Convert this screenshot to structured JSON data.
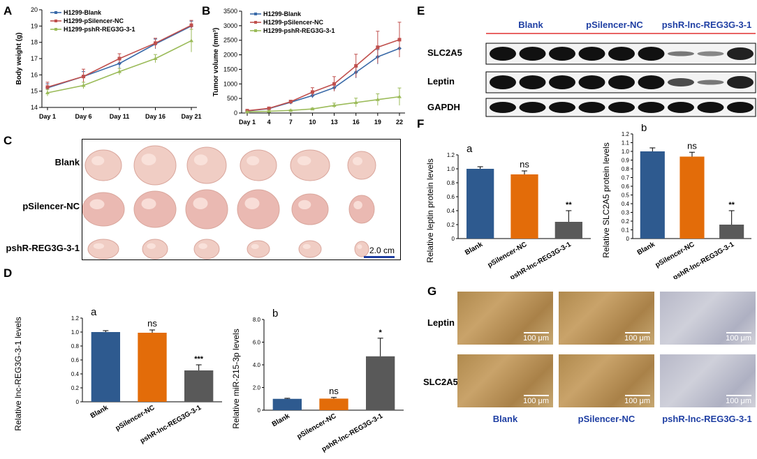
{
  "panels": {
    "A": "A",
    "B": "B",
    "C": "C",
    "D": "D",
    "E": "E",
    "F": "F",
    "G": "G",
    "Da": "a",
    "Db": "b",
    "Fa": "a",
    "Fb": "b"
  },
  "colors": {
    "blank": "#3a6aa8",
    "nc": "#c0504d",
    "shr": "#9bbb59",
    "bar_blank": "#2e5a8f",
    "bar_nc": "#e36c09",
    "bar_shr": "#595959",
    "label_blue": "#1f3fa3",
    "wb_red": "#e03030"
  },
  "chart_data": [
    {
      "id": "A",
      "type": "line",
      "title": "",
      "xlabel": "",
      "ylabel": "Body weight (g)",
      "categories": [
        "Day 1",
        "Day 6",
        "Day 11",
        "Day 16",
        "Day 21"
      ],
      "ylim": [
        14,
        20
      ],
      "yticks": [
        "14",
        "15",
        "16",
        "17",
        "18",
        "19",
        "20"
      ],
      "series": [
        {
          "name": "H1299-Blank",
          "values": [
            15.2,
            15.9,
            16.7,
            17.9,
            19.0
          ],
          "err": [
            0.25,
            0.3,
            0.3,
            0.3,
            0.3
          ]
        },
        {
          "name": "H1299-pSilencer-NC",
          "values": [
            15.25,
            15.9,
            17.0,
            17.95,
            19.05
          ],
          "err": [
            0.3,
            0.45,
            0.3,
            0.3,
            0.3
          ]
        },
        {
          "name": "H1299-pshR-REG3G-3-1",
          "values": [
            14.9,
            15.35,
            16.2,
            17.0,
            18.1
          ],
          "err": [
            0.2,
            0.2,
            0.2,
            0.25,
            0.7
          ]
        }
      ]
    },
    {
      "id": "B",
      "type": "line",
      "title": "",
      "xlabel": "",
      "ylabel": "Tumor volume (mm³)",
      "categories": [
        "Day 1",
        "4",
        "7",
        "10",
        "13",
        "16",
        "19",
        "22"
      ],
      "ylim": [
        0,
        3500
      ],
      "yticks": [
        "0",
        "500",
        "1000",
        "1500",
        "2000",
        "2500",
        "3000",
        "3500"
      ],
      "series": [
        {
          "name": "H1299-Blank",
          "values": [
            70,
            150,
            370,
            600,
            870,
            1400,
            1930,
            2220
          ],
          "err": [
            20,
            30,
            40,
            80,
            120,
            200,
            250,
            300
          ]
        },
        {
          "name": "H1299-pSilencer-NC",
          "values": [
            80,
            160,
            390,
            720,
            1000,
            1620,
            2260,
            2520
          ],
          "err": [
            20,
            30,
            50,
            150,
            250,
            400,
            550,
            600
          ]
        },
        {
          "name": "H1299-pshR-REG3G-3-1",
          "values": [
            40,
            60,
            90,
            140,
            260,
            360,
            460,
            560
          ],
          "err": [
            10,
            15,
            20,
            30,
            80,
            150,
            200,
            300
          ]
        }
      ]
    },
    {
      "id": "Da",
      "type": "bar",
      "ylabel": "Relative lnc-REG3G-3-1 levels",
      "categories": [
        "Blank",
        "pSilencer-NC",
        "pshR-lnc-REG3G-3-1"
      ],
      "values": [
        1.0,
        0.99,
        0.45
      ],
      "err": [
        0.02,
        0.04,
        0.08
      ],
      "annotations": [
        "",
        "ns",
        "***"
      ],
      "ylim": [
        0,
        1.2
      ],
      "yticks": [
        "0",
        "0.2",
        "0.4",
        "0.6",
        "0.8",
        "1.0",
        "1.2"
      ]
    },
    {
      "id": "Db",
      "type": "bar",
      "ylabel": "Relative miR-215-3p levels",
      "categories": [
        "Blank",
        "pSilencer-NC",
        "pshR-lnc-REG3G-3-1"
      ],
      "values": [
        1.0,
        1.02,
        4.75
      ],
      "err": [
        0.05,
        0.1,
        1.6
      ],
      "annotations": [
        "",
        "ns",
        "*"
      ],
      "ylim": [
        0,
        8.0
      ],
      "yticks": [
        "0",
        "2.0",
        "4.0",
        "6.0",
        "8.0"
      ]
    },
    {
      "id": "Fa",
      "type": "bar",
      "ylabel": "Relative leptin protein levels",
      "categories": [
        "Blank",
        "pSilencer-NC",
        "pshR-lnc-REG3G-3-1"
      ],
      "values": [
        1.0,
        0.92,
        0.24
      ],
      "err": [
        0.03,
        0.05,
        0.16
      ],
      "annotations": [
        "",
        "ns",
        "**"
      ],
      "ylim": [
        0,
        1.2
      ],
      "yticks": [
        "0",
        "0.2",
        "0.4",
        "0.6",
        "0.8",
        "1.0",
        "1.2"
      ]
    },
    {
      "id": "Fb",
      "type": "bar",
      "ylabel": "Relative SLC2A5 protein levels",
      "categories": [
        "Blank",
        "pSilencer-NC",
        "pshR-lnc-REG3G-3-1"
      ],
      "values": [
        1.0,
        0.94,
        0.16
      ],
      "err": [
        0.04,
        0.05,
        0.16
      ],
      "annotations": [
        "",
        "ns",
        "**"
      ],
      "ylim": [
        0,
        1.2
      ],
      "yticks": [
        "0",
        "0.1",
        "0.2",
        "0.3",
        "0.4",
        "0.5",
        "0.6",
        "0.7",
        "0.8",
        "0.9",
        "1.0",
        "1.1",
        "1.2"
      ]
    }
  ],
  "photo": {
    "rows": [
      "Blank",
      "pSilencer-NC",
      "pshR-REG3G-3-1"
    ],
    "scale": "2.0 cm"
  },
  "western": {
    "groups": [
      "Blank",
      "pSilencer-NC",
      "pshR-lnc-REG3G-3-1"
    ],
    "rows": [
      "SLC2A5",
      "Leptin",
      "GAPDH"
    ]
  },
  "ihc": {
    "rows": [
      "Leptin",
      "SLC2A5"
    ],
    "cols": [
      "Blank",
      "pSilencer-NC",
      "pshR-lnc-REG3G-3-1"
    ],
    "scale": "100 μm"
  }
}
